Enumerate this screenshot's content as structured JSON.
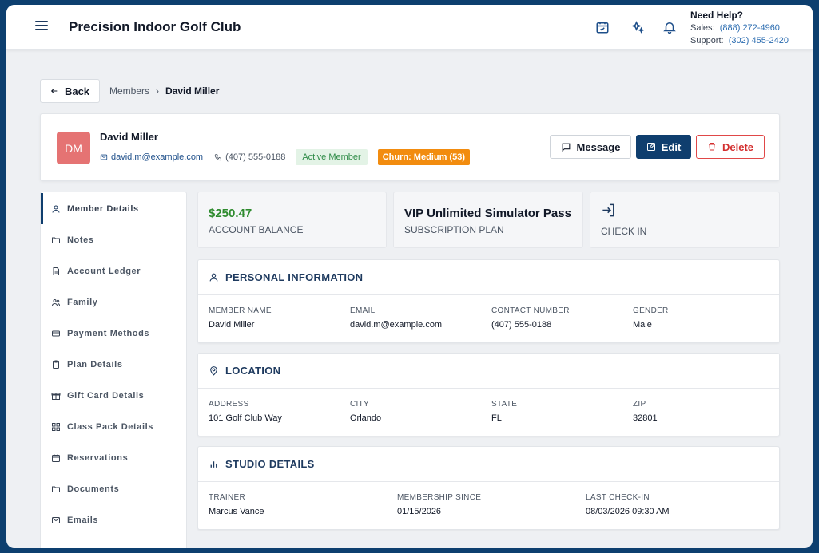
{
  "header": {
    "title": "Precision Indoor Golf Club",
    "help_title": "Need Help?",
    "sales_label": "Sales:",
    "sales_phone": "(888) 272-4960",
    "support_label": "Support:",
    "support_phone": "(302) 455-2420"
  },
  "breadcrumb": {
    "back_label": "Back",
    "parent": "Members",
    "separator": "›",
    "current": "David Miller"
  },
  "member": {
    "initials": "DM",
    "name": "David Miller",
    "email": "david.m@example.com",
    "phone": "(407) 555-0188",
    "status_badge": "Active Member",
    "churn_badge": "Churn: Medium (53)",
    "avatar_color": "#e57373",
    "churn_color": "#f28c0f"
  },
  "actions": {
    "message_label": "Message",
    "edit_label": "Edit",
    "delete_label": "Delete"
  },
  "sidebar": {
    "items": [
      {
        "label": "Member Details",
        "icon": "user-icon"
      },
      {
        "label": "Notes",
        "icon": "folder-icon"
      },
      {
        "label": "Account Ledger",
        "icon": "document-icon"
      },
      {
        "label": "Family",
        "icon": "users-icon"
      },
      {
        "label": "Payment Methods",
        "icon": "credit-card-icon"
      },
      {
        "label": "Plan Details",
        "icon": "clipboard-icon"
      },
      {
        "label": "Gift Card Details",
        "icon": "gift-icon"
      },
      {
        "label": "Class Pack Details",
        "icon": "grid-icon"
      },
      {
        "label": "Reservations",
        "icon": "calendar-icon"
      },
      {
        "label": "Documents",
        "icon": "folder-icon"
      },
      {
        "label": "Emails",
        "icon": "mail-icon"
      }
    ]
  },
  "stats": {
    "balance_value": "$250.47",
    "balance_label": "ACCOUNT BALANCE",
    "plan_value": "VIP Unlimited Simulator Pass",
    "plan_label": "SUBSCRIPTION PLAN",
    "checkin_label": "CHECK IN",
    "balance_color": "#2e8b2e"
  },
  "personal": {
    "title": "PERSONAL INFORMATION",
    "member_name_label": "MEMBER NAME",
    "member_name": "David Miller",
    "email_label": "EMAIL",
    "email": "david.m@example.com",
    "contact_label": "CONTACT NUMBER",
    "contact": "(407) 555-0188",
    "gender_label": "GENDER",
    "gender": "Male"
  },
  "location": {
    "title": "LOCATION",
    "address_label": "ADDRESS",
    "address": "101 Golf Club Way",
    "city_label": "CITY",
    "city": "Orlando",
    "state_label": "STATE",
    "state": "FL",
    "zip_label": "ZIP",
    "zip": "32801"
  },
  "studio": {
    "title": "STUDIO DETAILS",
    "trainer_label": "TRAINER",
    "trainer": "Marcus Vance",
    "since_label": "MEMBERSHIP SINCE",
    "since": "01/15/2026",
    "last_checkin_label": "LAST CHECK-IN",
    "last_checkin": "08/03/2026 09:30 AM"
  }
}
